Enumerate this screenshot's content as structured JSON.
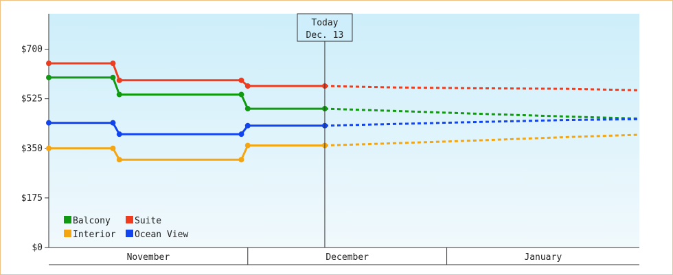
{
  "chart_data": {
    "type": "line",
    "title": "",
    "xlabel": "",
    "ylabel": "",
    "ylim": [
      0,
      825
    ],
    "y_ticks": [
      {
        "value": 0,
        "label": "$0"
      },
      {
        "value": 175,
        "label": "$175"
      },
      {
        "value": 350,
        "label": "$350"
      },
      {
        "value": 525,
        "label": "$525"
      },
      {
        "value": 700,
        "label": "$700"
      }
    ],
    "x_domain": [
      "2023-10-31",
      "2024-01-31"
    ],
    "x_months": [
      {
        "label": "November",
        "start": "2023-10-31",
        "end": "2023-12-01"
      },
      {
        "label": "December",
        "start": "2023-12-01",
        "end": "2024-01-01"
      },
      {
        "label": "January",
        "start": "2024-01-01",
        "end": "2024-01-31"
      }
    ],
    "today": {
      "date": "2023-12-13",
      "line1": "Today",
      "line2": "Dec. 13"
    },
    "background_gradient": [
      "#cdeefa",
      "#f1f9fc"
    ],
    "series": [
      {
        "name": "Suite",
        "color": "#ef3c1f",
        "points": [
          [
            "2023-10-31",
            650
          ],
          [
            "2023-11-10",
            650
          ],
          [
            "2023-11-11",
            590
          ],
          [
            "2023-11-30",
            590
          ],
          [
            "2023-12-01",
            570
          ],
          [
            "2023-12-13",
            570
          ]
        ],
        "forecast": [
          [
            "2023-12-13",
            570
          ],
          [
            "2023-12-24",
            565
          ],
          [
            "2024-01-06",
            562
          ],
          [
            "2024-01-20",
            560
          ],
          [
            "2024-01-31",
            555
          ]
        ]
      },
      {
        "name": "Balcony",
        "color": "#119911",
        "points": [
          [
            "2023-10-31",
            600
          ],
          [
            "2023-11-10",
            600
          ],
          [
            "2023-11-11",
            540
          ],
          [
            "2023-11-30",
            540
          ],
          [
            "2023-12-01",
            490
          ],
          [
            "2023-12-13",
            490
          ]
        ],
        "forecast": [
          [
            "2023-12-13",
            490
          ],
          [
            "2023-12-24",
            482
          ],
          [
            "2024-01-06",
            472
          ],
          [
            "2024-01-20",
            462
          ],
          [
            "2024-01-31",
            455
          ]
        ]
      },
      {
        "name": "Ocean View",
        "color": "#1144ee",
        "points": [
          [
            "2023-10-31",
            440
          ],
          [
            "2023-11-10",
            440
          ],
          [
            "2023-11-11",
            400
          ],
          [
            "2023-11-30",
            400
          ],
          [
            "2023-12-01",
            430
          ],
          [
            "2023-12-13",
            430
          ]
        ],
        "forecast": [
          [
            "2023-12-13",
            430
          ],
          [
            "2023-12-24",
            436
          ],
          [
            "2024-01-06",
            443
          ],
          [
            "2024-01-20",
            450
          ],
          [
            "2024-01-31",
            453
          ]
        ]
      },
      {
        "name": "Interior",
        "color": "#f4a612",
        "points": [
          [
            "2023-10-31",
            350
          ],
          [
            "2023-11-10",
            350
          ],
          [
            "2023-11-11",
            310
          ],
          [
            "2023-11-30",
            310
          ],
          [
            "2023-12-01",
            360
          ],
          [
            "2023-12-13",
            360
          ]
        ],
        "forecast": [
          [
            "2023-12-13",
            360
          ],
          [
            "2023-12-24",
            368
          ],
          [
            "2024-01-06",
            378
          ],
          [
            "2024-01-20",
            390
          ],
          [
            "2024-01-31",
            398
          ]
        ]
      }
    ],
    "legend": {
      "placement": "bottom-left",
      "items": [
        {
          "name": "Balcony",
          "color": "#119911"
        },
        {
          "name": "Suite",
          "color": "#ef3c1f"
        },
        {
          "name": "Interior",
          "color": "#f4a612"
        },
        {
          "name": "Ocean View",
          "color": "#1144ee"
        }
      ]
    }
  }
}
